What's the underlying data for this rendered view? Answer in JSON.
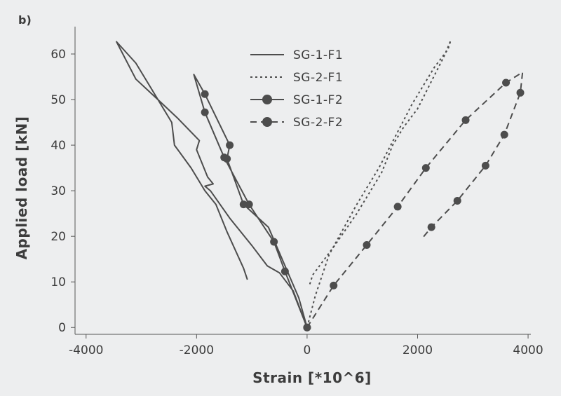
{
  "chart_data": {
    "type": "line",
    "panel_label": "b)",
    "xlabel": "Strain [*10^6]",
    "ylabel": "Applied load [kN]",
    "xlim": [
      -4200,
      4050
    ],
    "ylim": [
      -1.5,
      66
    ],
    "x_ticks": [
      -4000,
      -2000,
      0,
      2000,
      4000
    ],
    "y_ticks": [
      0,
      10,
      20,
      30,
      40,
      50,
      60
    ],
    "x_tick_labels": [
      "-4000",
      "-2000",
      "0",
      "2000",
      "4000"
    ],
    "y_tick_labels": [
      "0",
      "10",
      "20",
      "30",
      "40",
      "50",
      "60"
    ],
    "grid": false,
    "legend_position": "top-center",
    "line_color": "#4d4d4d",
    "series": [
      {
        "name": "SG-1-F1",
        "style": "solid",
        "markers": false,
        "points": [
          [
            0,
            0
          ],
          [
            -250,
            8
          ],
          [
            -500,
            12
          ],
          [
            -720,
            13.5
          ],
          [
            -1000,
            18
          ],
          [
            -1400,
            24
          ],
          [
            -1750,
            30
          ],
          [
            -1850,
            31
          ],
          [
            -1700,
            31.5
          ],
          [
            -1800,
            33
          ],
          [
            -2000,
            39
          ],
          [
            -1950,
            41
          ],
          [
            -2350,
            46
          ],
          [
            -2700,
            50
          ],
          [
            -3100,
            54.5
          ],
          [
            -3450,
            62.7
          ],
          [
            -3100,
            58
          ],
          [
            -2850,
            53
          ],
          [
            -2600,
            48
          ],
          [
            -2450,
            45
          ],
          [
            -2400,
            40
          ],
          [
            -2100,
            35
          ],
          [
            -1850,
            30
          ],
          [
            -1650,
            27
          ],
          [
            -1450,
            21
          ],
          [
            -1150,
            13
          ],
          [
            -1080,
            10.5
          ]
        ]
      },
      {
        "name": "SG-2-F1",
        "style": "dotted",
        "markers": false,
        "points": [
          [
            50,
            9.5
          ],
          [
            100,
            11.5
          ],
          [
            500,
            18
          ],
          [
            900,
            25
          ],
          [
            1350,
            34
          ],
          [
            1550,
            40
          ],
          [
            1750,
            44
          ],
          [
            2000,
            48
          ],
          [
            2250,
            54
          ],
          [
            2480,
            59.5
          ],
          [
            2600,
            63
          ],
          [
            2550,
            61
          ],
          [
            2300,
            57
          ],
          [
            2100,
            53
          ],
          [
            1900,
            49
          ],
          [
            1600,
            42
          ],
          [
            1300,
            35
          ],
          [
            900,
            27
          ],
          [
            400,
            16
          ],
          [
            150,
            7
          ],
          [
            0,
            0
          ]
        ]
      },
      {
        "name": "SG-1-F2",
        "style": "solid",
        "markers": true,
        "points": [
          [
            0,
            0
          ],
          [
            -400,
            12.3
          ],
          [
            -600,
            18.8
          ],
          [
            -1050,
            27
          ],
          [
            -1500,
            37.3
          ],
          [
            -1850,
            47.2
          ],
          [
            -2050,
            55.5
          ],
          [
            -1850,
            51.2
          ],
          [
            -1400,
            40
          ],
          [
            -1450,
            37
          ],
          [
            -1150,
            27
          ],
          [
            -700,
            22
          ],
          [
            -150,
            6.5
          ],
          [
            0,
            0
          ]
        ],
        "marker_points": [
          [
            0,
            0
          ],
          [
            -400,
            12.3
          ],
          [
            -600,
            18.8
          ],
          [
            -1050,
            27
          ],
          [
            -1150,
            27
          ],
          [
            -1450,
            37
          ],
          [
            -1500,
            37.3
          ],
          [
            -1850,
            47.2
          ],
          [
            -1850,
            51.2
          ],
          [
            -1400,
            40
          ]
        ]
      },
      {
        "name": "SG-2-F2",
        "style": "dashed",
        "markers": true,
        "points": [
          [
            0,
            0
          ],
          [
            480,
            9.2
          ],
          [
            1080,
            18.1
          ],
          [
            1640,
            26.5
          ],
          [
            2150,
            35
          ],
          [
            2870,
            45.5
          ],
          [
            3600,
            53.7
          ],
          [
            3900,
            56
          ],
          [
            3860,
            51.5
          ],
          [
            3570,
            42.3
          ],
          [
            3230,
            35.5
          ],
          [
            2720,
            27.8
          ],
          [
            2250,
            22
          ],
          [
            2100,
            19.8
          ]
        ],
        "marker_points": [
          [
            0,
            0
          ],
          [
            480,
            9.2
          ],
          [
            1080,
            18.1
          ],
          [
            1640,
            26.5
          ],
          [
            2150,
            35
          ],
          [
            2870,
            45.5
          ],
          [
            3600,
            53.7
          ],
          [
            3860,
            51.5
          ],
          [
            3570,
            42.3
          ],
          [
            3230,
            35.5
          ],
          [
            2720,
            27.8
          ],
          [
            2250,
            22
          ]
        ]
      }
    ]
  }
}
